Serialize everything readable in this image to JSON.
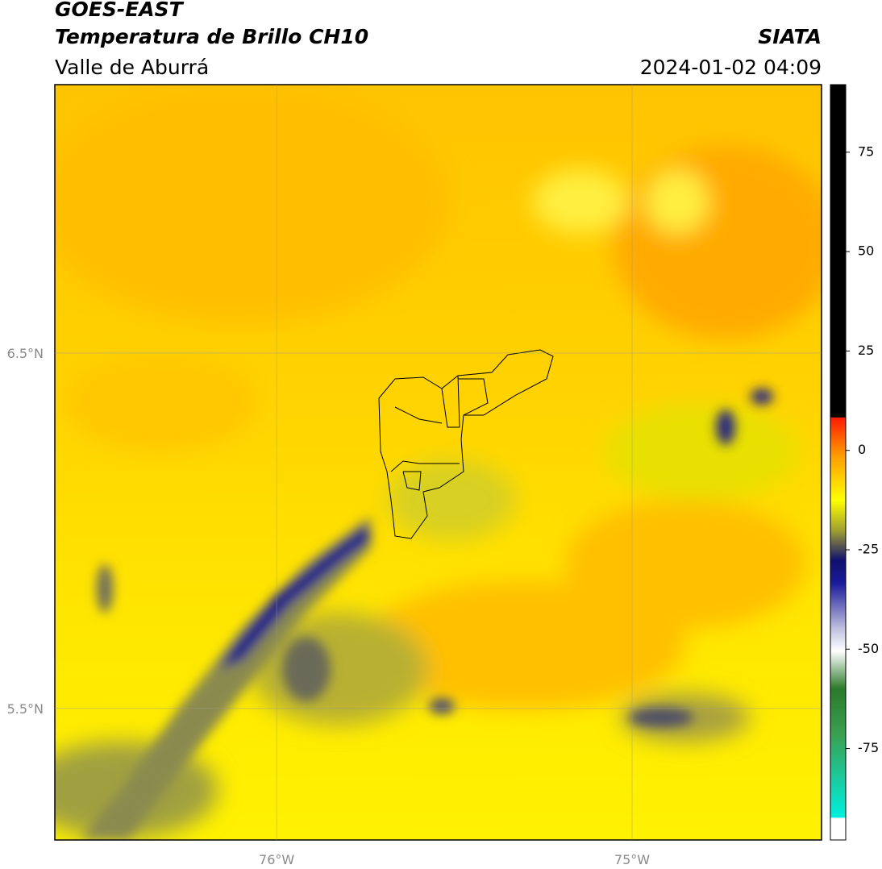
{
  "map": {
    "title": "GOES-EAST",
    "subtitle": "Temperatura de Brillo CH10",
    "region": "Valle de Aburrá",
    "source": "SIATA",
    "datetime": "2024-01-02 04:09",
    "xlim": [
      -76.624,
      -74.467
    ],
    "ylim": [
      5.13,
      7.255
    ],
    "xticks": [
      {
        "value": -76,
        "label": "76°W"
      },
      {
        "value": -75,
        "label": "75°W"
      }
    ],
    "yticks": [
      {
        "value": 6.5,
        "label": "6.5°N"
      },
      {
        "value": 5.5,
        "label": "5.5°N"
      }
    ],
    "grid": true,
    "colorbar": {
      "clim": [
        -98,
        92
      ],
      "ticks": [
        75,
        50,
        25,
        0,
        -25,
        -50,
        -75
      ]
    }
  }
}
